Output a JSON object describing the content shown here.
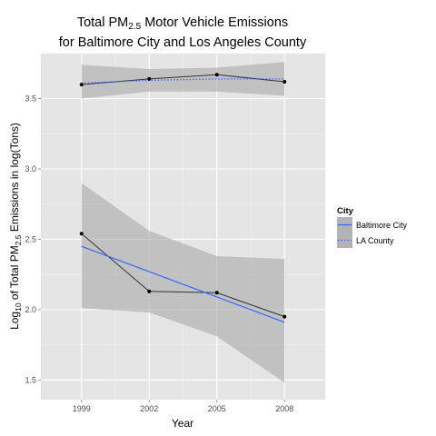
{
  "chart_data": {
    "type": "line",
    "title_line1_pre": "Total PM",
    "title_line1_sub": "2.5",
    "title_line1_post": " Motor Vehicle Emissions",
    "title_line2": "for Baltimore City and Los Angeles County",
    "xlabel": "Year",
    "ylabel_pre": "Log",
    "ylabel_sub1": "10",
    "ylabel_mid": " of Total PM",
    "ylabel_sub2": "2.5",
    "ylabel_post": " Emissions in log(Tons)",
    "x": [
      1999,
      2002,
      2005,
      2008
    ],
    "xlim": [
      1997.2,
      2009.8
    ],
    "ylim": [
      1.36,
      3.82
    ],
    "yticks": [
      1.5,
      2.0,
      2.5,
      3.0,
      3.5
    ],
    "ytick_labels": [
      "1.5",
      "2.0",
      "2.5",
      "3.0",
      "3.5"
    ],
    "xtick_labels": [
      "1999",
      "2002",
      "2005",
      "2008"
    ],
    "grid": true,
    "legend": {
      "title": "City",
      "position": "right",
      "entries": [
        "Baltimore City",
        "LA County"
      ]
    },
    "series": [
      {
        "name": "Baltimore City",
        "values": [
          2.54,
          2.13,
          2.12,
          1.95
        ],
        "fit": [
          2.45,
          2.27,
          2.09,
          1.91
        ],
        "ci_lower": [
          2.01,
          1.98,
          1.81,
          1.48
        ],
        "ci_upper": [
          2.9,
          2.56,
          2.38,
          2.36
        ],
        "line_style": "solid"
      },
      {
        "name": "LA County",
        "values": [
          3.6,
          3.64,
          3.67,
          3.62
        ],
        "fit": [
          3.61,
          3.63,
          3.64,
          3.64
        ],
        "ci_lower": [
          3.5,
          3.55,
          3.55,
          3.52
        ],
        "ci_upper": [
          3.74,
          3.71,
          3.72,
          3.76
        ],
        "line_style": "dotted"
      }
    ],
    "colors": {
      "panel": "#e5e5e5",
      "grid_major": "#ffffff",
      "grid_minor": "#f2f2f2",
      "ribbon": "#a9a9a9",
      "points_line": "#333333",
      "fit_line": "#3366ff",
      "legend_key_bg": "#b3b3b3"
    }
  }
}
